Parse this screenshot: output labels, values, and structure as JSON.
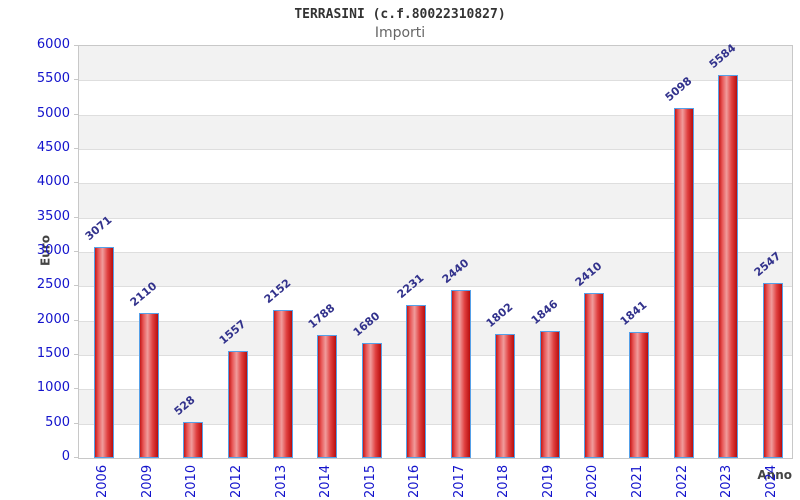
{
  "chart_data": {
    "type": "bar",
    "title": "TERRASINI (c.f.80022310827)",
    "subtitle": "Importi",
    "xlabel": "Anno",
    "ylabel": "Euro",
    "categories": [
      "2006",
      "2009",
      "2010",
      "2012",
      "2013",
      "2014",
      "2015",
      "2016",
      "2017",
      "2018",
      "2019",
      "2020",
      "2021",
      "2022",
      "2023",
      "2024"
    ],
    "values": [
      3071,
      2110,
      528,
      1557,
      2152,
      1788,
      1680,
      2231,
      2440,
      1802,
      1846,
      2410,
      1841,
      5098,
      5584,
      2547
    ],
    "ylim": [
      0,
      6000
    ],
    "ytick_step": 500,
    "yticks": [
      0,
      500,
      1000,
      1500,
      2000,
      2500,
      3000,
      3500,
      4000,
      4500,
      5000,
      5500,
      6000
    ],
    "grid": "horizontal-alternating-bands",
    "legend": "none",
    "value_labels": "above-bars-rotated",
    "colors": {
      "bar_fill_edge": "#c41818",
      "bar_fill_highlight": "#f09c9c",
      "bar_border": "#55a0e8",
      "axis_tick_label": "#1414cc",
      "value_label": "#32328c",
      "band_gray": "#f2f2f2",
      "band_white": "#ffffff",
      "plot_border": "#c8c8c8",
      "title_color": "#333333",
      "subtitle_color": "#666666",
      "axis_title_color": "#444444"
    }
  }
}
